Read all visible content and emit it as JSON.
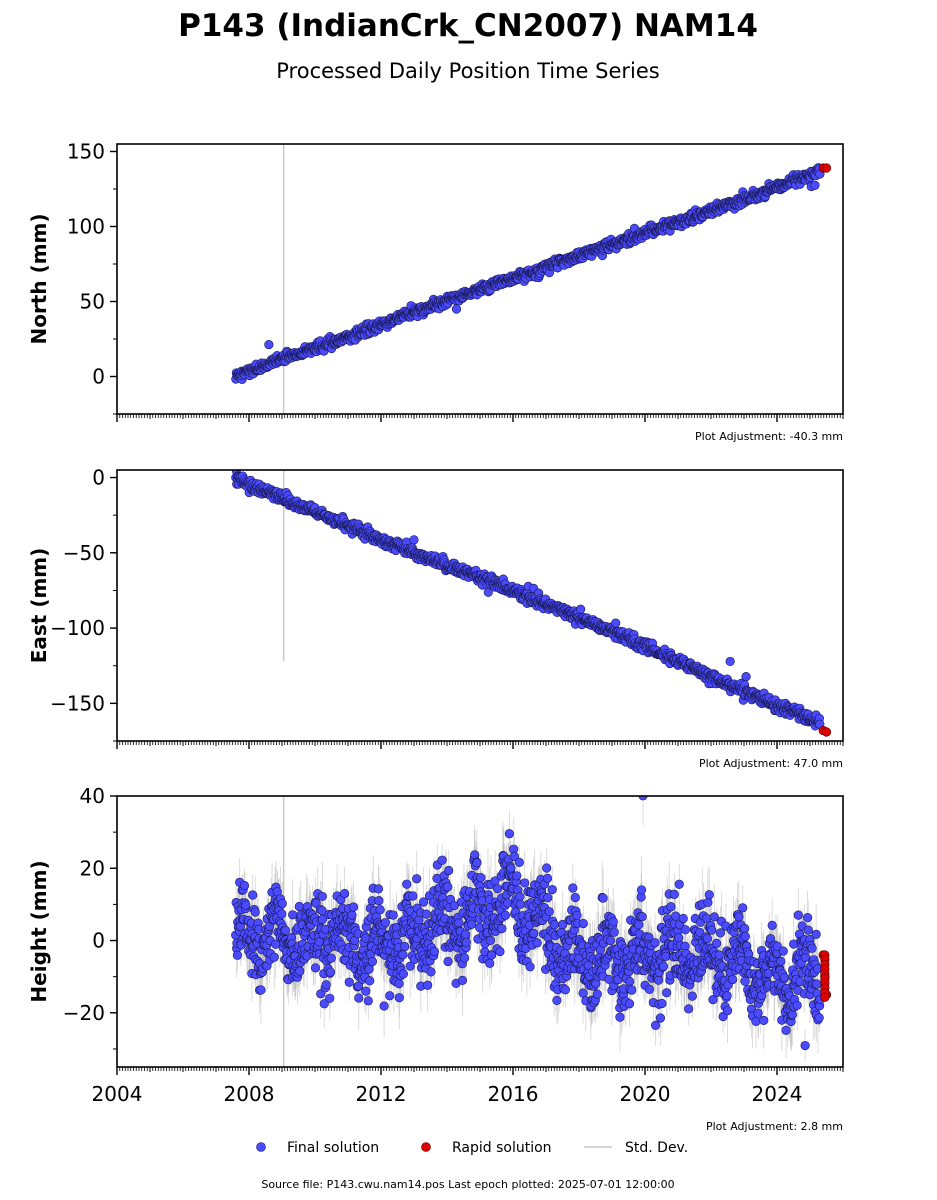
{
  "title": "P143 (IndianCrk_CN2007) NAM14",
  "subtitle": "Processed Daily Position Time Series",
  "footer": "Source file: P143.cwu.nam14.pos  Last epoch plotted: 2025-07-01 12:00:00",
  "legend": {
    "final": "Final solution",
    "rapid": "Rapid solution",
    "std": "Std. Dev."
  },
  "colors": {
    "final": "#4a4aff",
    "final_edge": "#1a1a55",
    "rapid": "#e00000",
    "std": "#b0b0b0"
  },
  "x_ticks": [
    "2004",
    "2008",
    "2012",
    "2016",
    "2020",
    "2024"
  ],
  "chart_data": [
    {
      "type": "scatter",
      "ylabel": "North (mm)",
      "xlim": [
        2004.0,
        2026.0
      ],
      "ylim": [
        -25,
        155
      ],
      "yticks": [
        "150",
        "100",
        "50",
        "0"
      ],
      "note": "Plot Adjustment: -40.3 mm",
      "trend": {
        "x0": 2007.6,
        "y0": 0,
        "x1": 2025.5,
        "y1": 139
      },
      "scatter_sd": 1.6,
      "outlier_bar": {
        "x": 2009.05,
        "y_low": -25,
        "y_high": 155
      },
      "series": [
        {
          "name": "Final solution",
          "x": [
            2007.6,
            2009.0,
            2011.0,
            2013.0,
            2015.0,
            2017.0,
            2019.0,
            2021.0,
            2023.0,
            2025.3
          ],
          "y": [
            0,
            12,
            26,
            43,
            58,
            73,
            88,
            103,
            118,
            137
          ]
        },
        {
          "name": "Rapid solution",
          "x": [
            2025.4,
            2025.5
          ],
          "y": [
            139,
            139
          ]
        }
      ]
    },
    {
      "type": "scatter",
      "ylabel": "East (mm)",
      "xlim": [
        2004.0,
        2026.0
      ],
      "ylim": [
        -175,
        5
      ],
      "yticks": [
        "0",
        "−50",
        "−100",
        "−150"
      ],
      "note": "Plot Adjustment: 47.0 mm",
      "trend": {
        "x0": 2007.6,
        "y0": 0,
        "x1": 2025.5,
        "y1": -169
      },
      "scatter_sd": 1.8,
      "outlier_bar": {
        "x": 2009.05,
        "y_low": -122,
        "y_high": 5
      },
      "series": [
        {
          "name": "Final solution",
          "x": [
            2007.6,
            2009.0,
            2011.0,
            2013.0,
            2015.0,
            2017.0,
            2019.0,
            2021.0,
            2023.0,
            2025.3
          ],
          "y": [
            0,
            -14,
            -32,
            -50,
            -66,
            -84,
            -102,
            -122,
            -142,
            -163
          ]
        },
        {
          "name": "Rapid solution",
          "x": [
            2025.4,
            2025.5
          ],
          "y": [
            -168,
            -169
          ]
        }
      ]
    },
    {
      "type": "scatter",
      "ylabel": "Height (mm)",
      "xlim": [
        2004.0,
        2026.0
      ],
      "ylim": [
        -35,
        40
      ],
      "yticks": [
        "40",
        "20",
        "0",
        "−20"
      ],
      "note": "Plot Adjustment: 2.8 mm",
      "seasonal_amplitude": 6,
      "scatter_sd": 5.5,
      "outlier_bar": {
        "x": 2009.05,
        "y_low": -35,
        "y_high": 40
      },
      "series": [
        {
          "name": "Final solution",
          "x": [
            2007.6,
            2010.0,
            2012.0,
            2014.0,
            2016.0,
            2018.0,
            2020.0,
            2022.0,
            2024.0,
            2025.3
          ],
          "y": [
            2,
            0,
            -2,
            4,
            12,
            -6,
            -5,
            -3,
            -12,
            -10
          ]
        },
        {
          "name": "Rapid solution",
          "x": [
            2025.4,
            2025.45,
            2025.5
          ],
          "y": [
            -4,
            -10,
            -15
          ]
        }
      ]
    }
  ]
}
